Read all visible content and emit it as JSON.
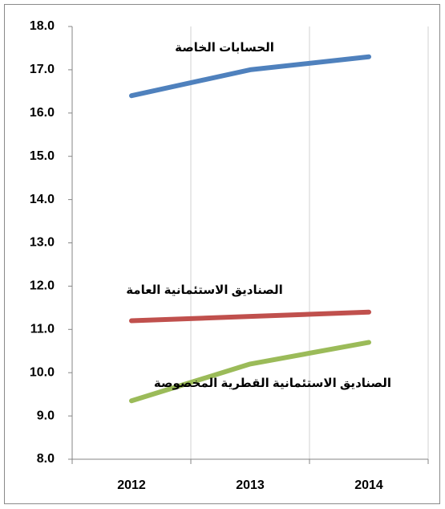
{
  "chart_data": {
    "type": "line",
    "categories": [
      "2012",
      "2013",
      "2014"
    ],
    "series": [
      {
        "name": "الحسابات الخاصة",
        "color": "#4f81bd",
        "values": [
          16.4,
          17.0,
          17.3
        ]
      },
      {
        "name": "الصناديق الاستئمانية العامة",
        "color": "#c0504d",
        "values": [
          11.2,
          11.3,
          11.4
        ]
      },
      {
        "name": "الصناديق الاستئمانية القطرية المخصوصة",
        "color": "#9bbb59",
        "values": [
          9.35,
          10.2,
          10.7
        ]
      }
    ],
    "ylim": [
      8,
      18
    ],
    "yticks": [
      {
        "value": 8,
        "label": "8.0"
      },
      {
        "value": 9,
        "label": "9.0"
      },
      {
        "value": 10,
        "label": "10.0"
      },
      {
        "value": 11,
        "label": "11.0"
      },
      {
        "value": 12,
        "label": "12.0"
      },
      {
        "value": 13,
        "label": "13.0"
      },
      {
        "value": 14,
        "label": "14.0"
      },
      {
        "value": 15,
        "label": "15.0"
      },
      {
        "value": 16,
        "label": "16.0"
      },
      {
        "value": 17,
        "label": "17.0"
      },
      {
        "value": 18,
        "label": "18.0"
      }
    ],
    "grid": "x"
  }
}
